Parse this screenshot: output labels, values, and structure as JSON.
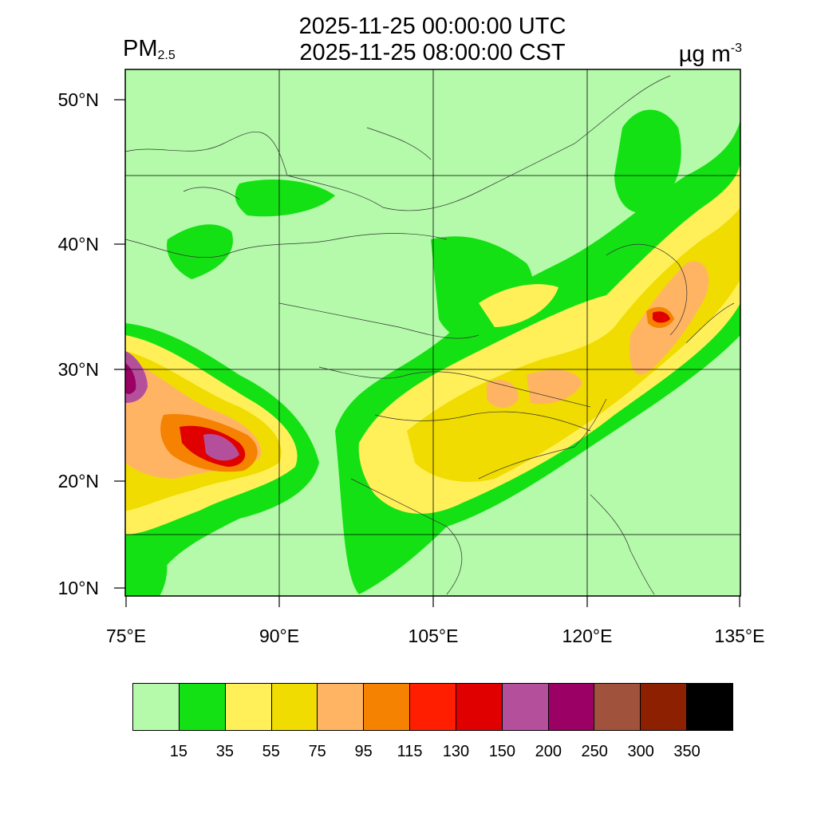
{
  "title": {
    "utc": "2025-11-25 00:00:00 UTC",
    "cst": "2025-11-25 08:00:00 CST"
  },
  "variable": {
    "name": "PM",
    "subscript": "2.5"
  },
  "unit": {
    "base": "µg m",
    "exponent": "-3"
  },
  "axes": {
    "lat_labels": [
      "50°N",
      "40°N",
      "30°N",
      "20°N",
      "10°N"
    ],
    "lon_labels": [
      "75°E",
      "90°E",
      "105°E",
      "120°E",
      "135°E"
    ],
    "lon_range": [
      75,
      135
    ],
    "lat_range": [
      9,
      52
    ]
  },
  "colorbar": {
    "colors": [
      "#b4faaa",
      "#14e114",
      "#fff05a",
      "#f0dc00",
      "#ffb464",
      "#f58200",
      "#ff1e00",
      "#e10000",
      "#b4509b",
      "#9b0064",
      "#a0523c",
      "#8c2000",
      "#000000"
    ],
    "ticks": [
      "15",
      "35",
      "55",
      "75",
      "95",
      "115",
      "130",
      "150",
      "200",
      "250",
      "300",
      "350"
    ]
  },
  "chart_data": {
    "type": "heatmap",
    "title": "2025-11-25 00:00:00 UTC / 2025-11-25 08:00:00 CST",
    "variable": "PM2.5",
    "unit": "µg m-3",
    "xlabel": "",
    "ylabel": "",
    "xlim": [
      75,
      135
    ],
    "ylim": [
      9,
      52
    ],
    "levels": [
      15,
      35,
      55,
      75,
      95,
      115,
      130,
      150,
      200,
      250,
      300,
      350
    ],
    "grid": true
  }
}
